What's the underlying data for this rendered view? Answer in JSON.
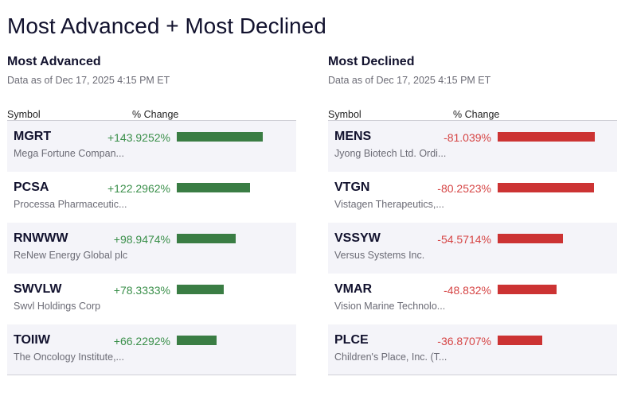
{
  "title": "Most Advanced + Most Declined",
  "colors": {
    "up": "#3a7d44",
    "up_text": "#3a8f4a",
    "down": "#cc3333",
    "down_text": "#d64545"
  },
  "advanced": {
    "heading": "Most Advanced",
    "date": "Data as of Dec 17, 2025 4:15 PM ET",
    "col_symbol": "Symbol",
    "col_change": "% Change",
    "rows": [
      {
        "symbol": "MGRT",
        "name": "Mega Fortune Compan...",
        "change": "+143.9252%",
        "value": 143.9252
      },
      {
        "symbol": "PCSA",
        "name": "Processa Pharmaceutic...",
        "change": "+122.2962%",
        "value": 122.2962
      },
      {
        "symbol": "RNWWW",
        "name": "ReNew Energy Global plc",
        "change": "+98.9474%",
        "value": 98.9474
      },
      {
        "symbol": "SWVLW",
        "name": "Swvl Holdings Corp",
        "change": "+78.3333%",
        "value": 78.3333
      },
      {
        "symbol": "TOIIW",
        "name": "The Oncology Institute,...",
        "change": "+66.2292%",
        "value": 66.2292
      }
    ]
  },
  "declined": {
    "heading": "Most Declined",
    "date": "Data as of Dec 17, 2025 4:15 PM ET",
    "col_symbol": "Symbol",
    "col_change": "% Change",
    "rows": [
      {
        "symbol": "MENS",
        "name": "Jyong Biotech Ltd. Ordi...",
        "change": "-81.039%",
        "value": -81.039
      },
      {
        "symbol": "VTGN",
        "name": "Vistagen Therapeutics,...",
        "change": "-80.2523%",
        "value": -80.2523
      },
      {
        "symbol": "VSSYW",
        "name": "Versus Systems Inc.",
        "change": "-54.5714%",
        "value": -54.5714
      },
      {
        "symbol": "VMAR",
        "name": "Vision Marine Technolo...",
        "change": "-48.832%",
        "value": -48.832
      },
      {
        "symbol": "PLCE",
        "name": "Children's Place, Inc. (T...",
        "change": "-36.8707%",
        "value": -36.8707
      }
    ]
  }
}
